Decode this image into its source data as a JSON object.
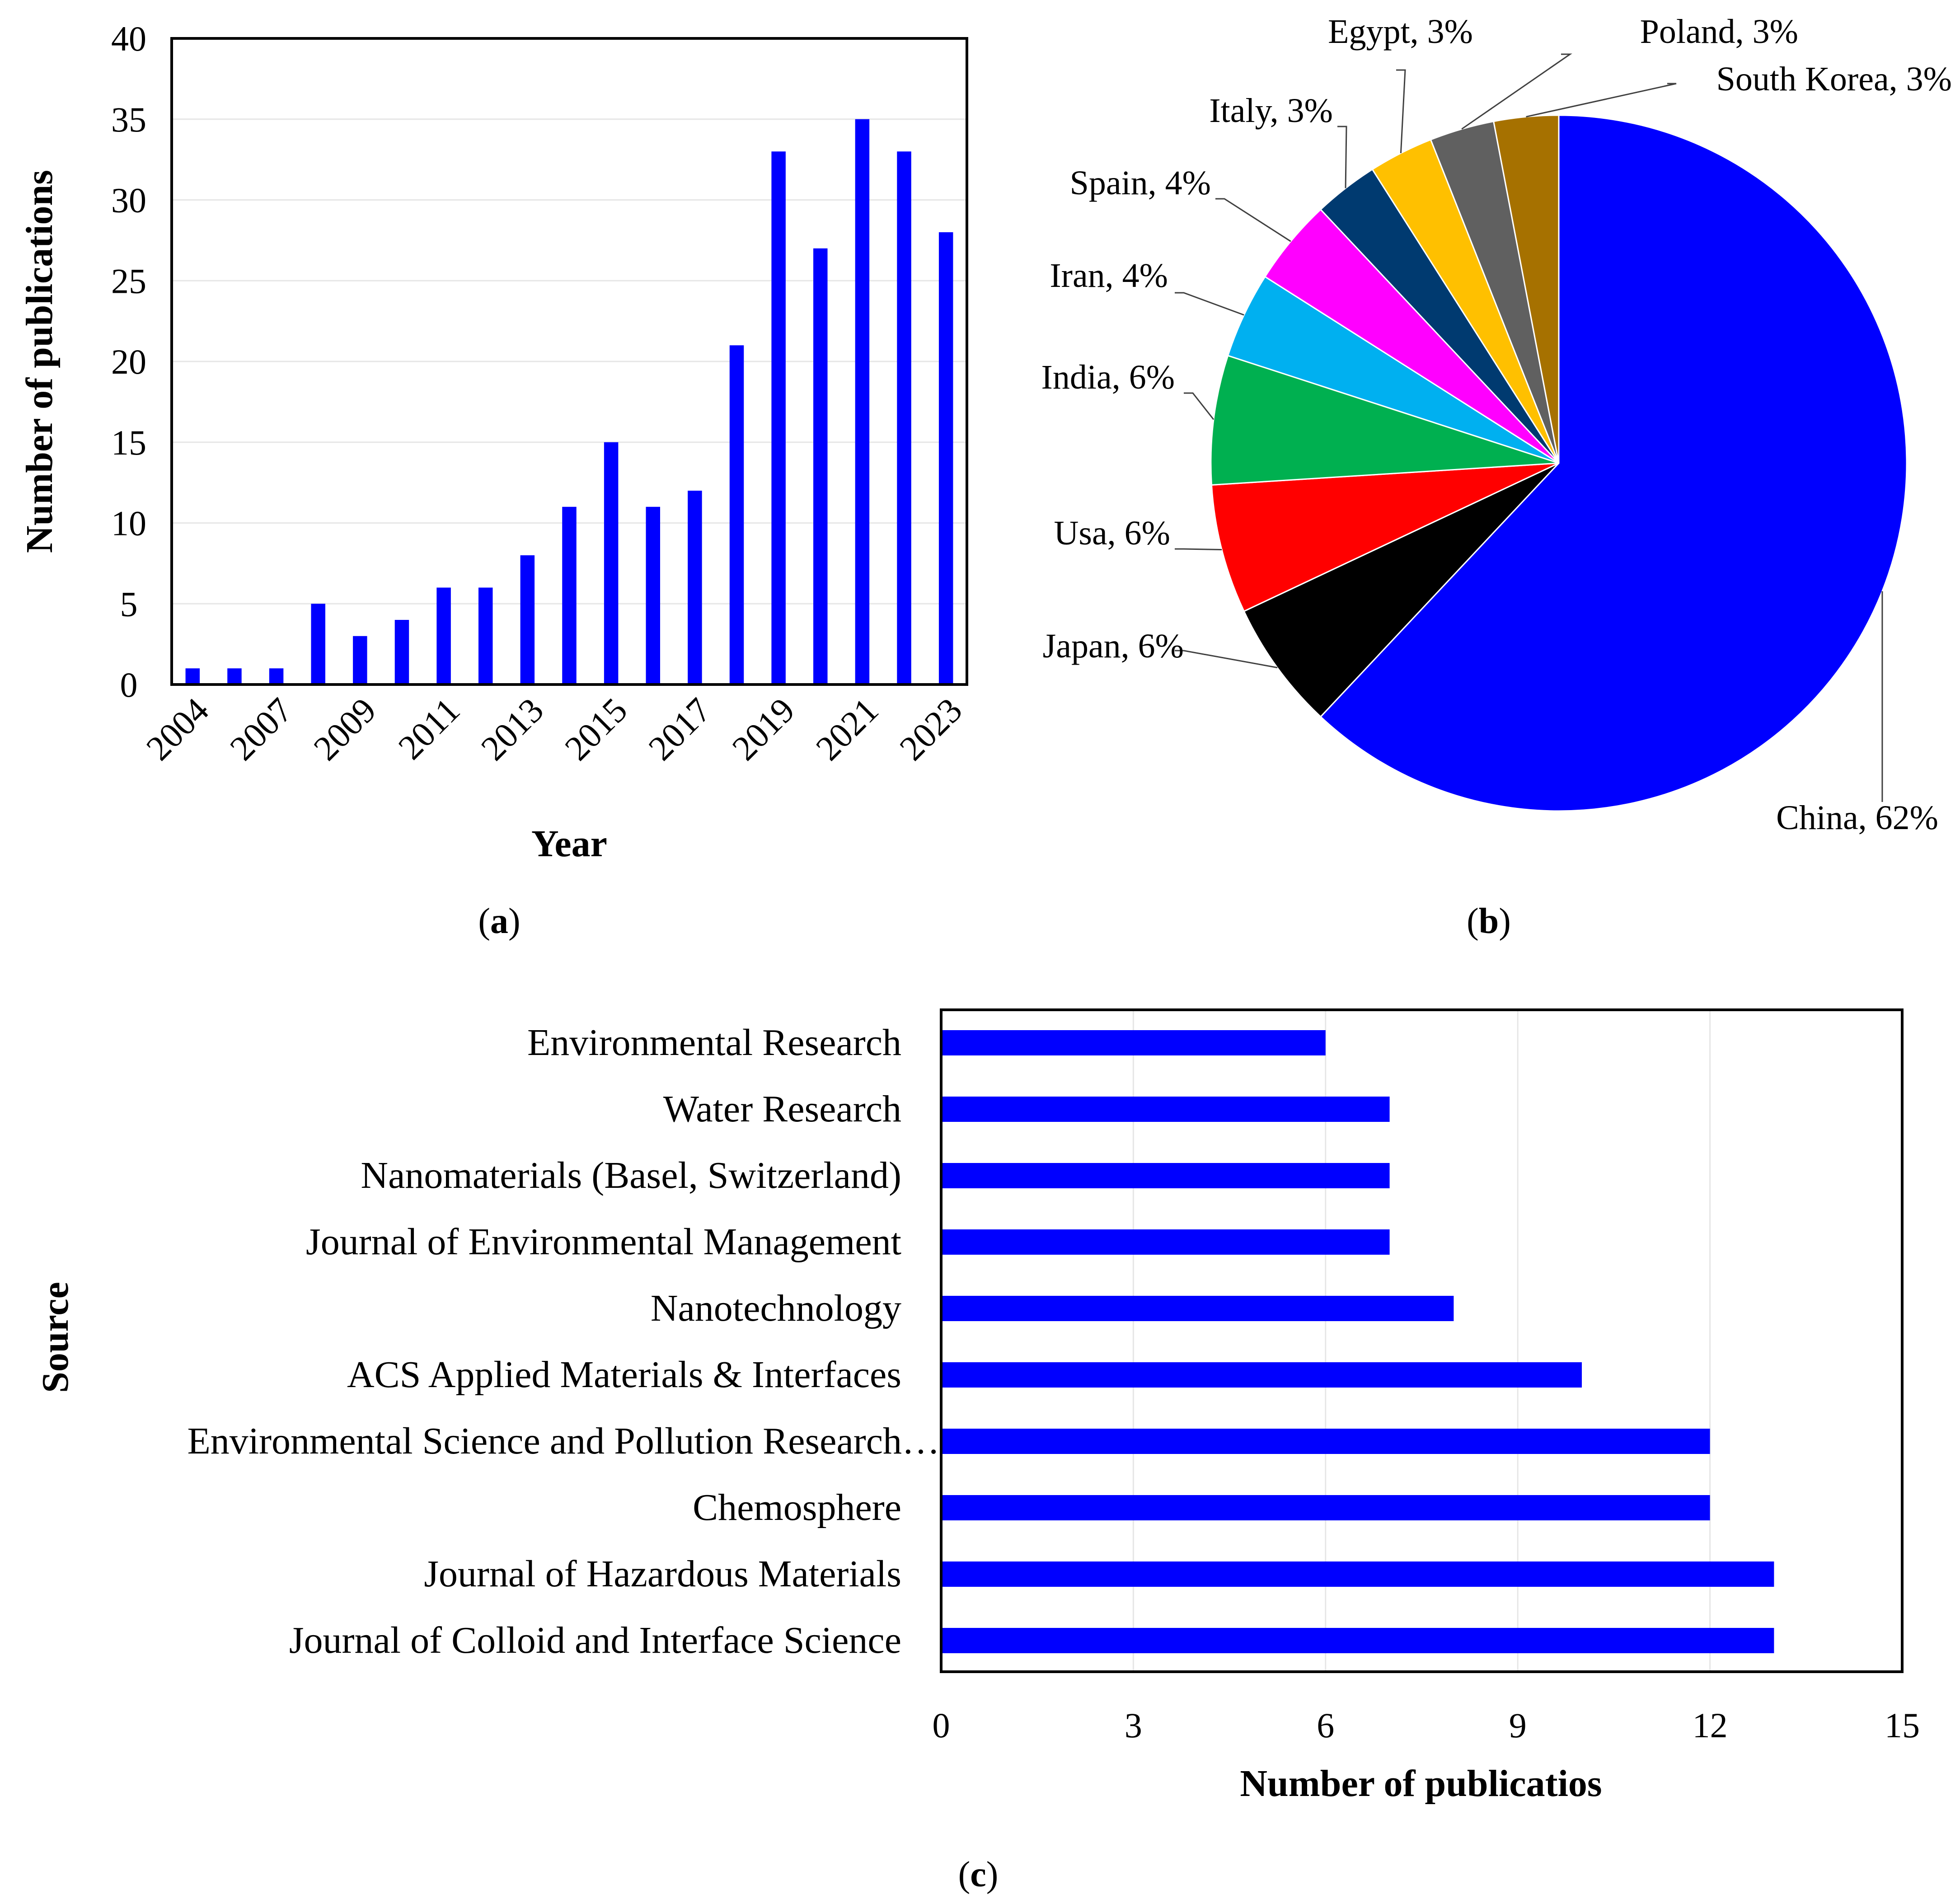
{
  "colors": {
    "bar": "#0000FF",
    "axis": "#000000",
    "grid": "#E6E6E6",
    "leader": "#404040"
  },
  "panel_labels": {
    "a": "a",
    "b": "b",
    "c": "c"
  },
  "chart_data": [
    {
      "id": "a",
      "type": "bar",
      "title": "",
      "xlabel": "Year",
      "ylabel": "Number of publications",
      "ylim": [
        0,
        40
      ],
      "yticks": [
        "0",
        "5",
        "10",
        "15",
        "20",
        "25",
        "30",
        "35",
        "40"
      ],
      "categories": [
        "2004",
        "2006",
        "2007",
        "2008",
        "2009",
        "2010",
        "2011",
        "2012",
        "2013",
        "2014",
        "2015",
        "2016",
        "2017",
        "2018",
        "2019",
        "2020",
        "2021",
        "2022",
        "2023"
      ],
      "xticklabels": [
        "2004",
        "2007",
        "2009",
        "2011",
        "2013",
        "2015",
        "2017",
        "2019",
        "2021",
        "2023"
      ],
      "values": [
        1,
        1,
        1,
        5,
        3,
        4,
        6,
        6,
        8,
        11,
        15,
        11,
        12,
        21,
        33,
        27,
        35,
        33,
        28
      ],
      "grid": true
    },
    {
      "id": "b",
      "type": "pie",
      "title": "",
      "slices": [
        {
          "label": "China, 62%",
          "name": "China",
          "value": 62,
          "color": "#0000FF"
        },
        {
          "label": "Japan, 6%",
          "name": "Japan",
          "value": 6,
          "color": "#000000"
        },
        {
          "label": "Usa, 6%",
          "name": "Usa",
          "value": 6,
          "color": "#FF0000"
        },
        {
          "label": "India, 6%",
          "name": "India",
          "value": 6,
          "color": "#00B050"
        },
        {
          "label": "Iran, 4%",
          "name": "Iran",
          "value": 4,
          "color": "#00B0F0"
        },
        {
          "label": "Spain, 4%",
          "name": "Spain",
          "value": 4,
          "color": "#FF00FF"
        },
        {
          "label": "Italy, 3%",
          "name": "Italy",
          "value": 3,
          "color": "#003A70"
        },
        {
          "label": "Egypt, 3%",
          "name": "Egypt",
          "value": 3,
          "color": "#FFC000"
        },
        {
          "label": "Poland, 3%",
          "name": "Poland",
          "value": 3,
          "color": "#606060"
        },
        {
          "label": "South Korea, 3%",
          "name": "South Korea",
          "value": 3,
          "color": "#A67100"
        }
      ]
    },
    {
      "id": "c",
      "type": "bar",
      "orientation": "horizontal",
      "title": "",
      "xlabel": "Number of publicatios",
      "ylabel": "Source",
      "xlim": [
        0,
        15
      ],
      "xticks": [
        "0",
        "3",
        "6",
        "9",
        "12",
        "15"
      ],
      "categories": [
        "Environmental Research",
        "Water Research",
        "Nanomaterials (Basel, Switzerland)",
        "Journal of Environmental Management",
        "Nanotechnology",
        "ACS Applied Materials & Interfaces",
        "Environmental Science and Pollution Research…",
        "Chemosphere",
        "Journal of Hazardous Materials",
        "Journal of Colloid and Interface Science"
      ],
      "values": [
        6,
        7,
        7,
        7,
        8,
        10,
        12,
        12,
        13,
        13
      ],
      "grid": true
    }
  ]
}
